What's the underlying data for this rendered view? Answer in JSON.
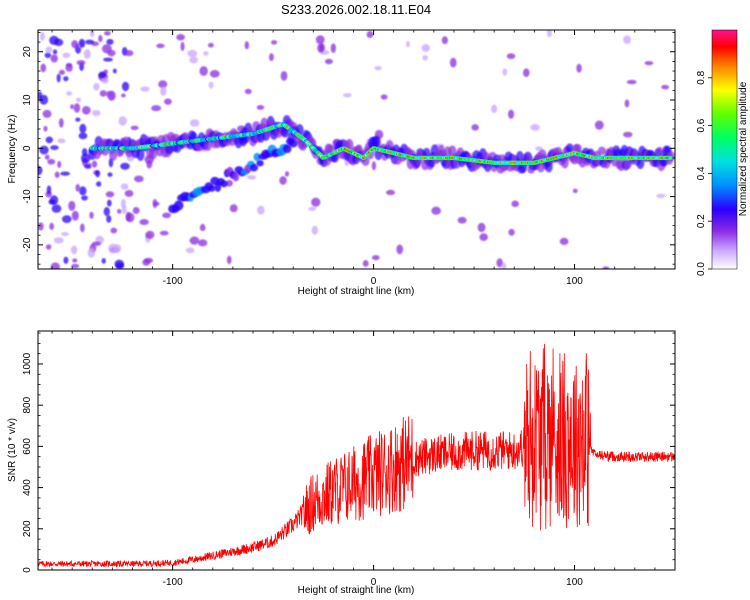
{
  "chart_data": [
    {
      "type": "heatmap",
      "title": "S233.2026.002.18.11.E04",
      "xlabel": "Height of straight line (km)",
      "ylabel": "Frequency (Hz)",
      "xlim": [
        -167,
        150
      ],
      "ylim": [
        -25,
        24.5
      ],
      "xticks": [
        -100,
        0,
        100
      ],
      "yticks": [
        -20,
        -10,
        0,
        10,
        20
      ],
      "colorbar": {
        "label": "Normalized spectral amplitude",
        "range": [
          0,
          1
        ],
        "ticks": [
          0.0,
          0.2,
          0.4,
          0.6,
          0.8
        ]
      },
      "ridge": {
        "description_points_x": [
          -140,
          -120,
          -100,
          -80,
          -60,
          -45,
          -35,
          -25,
          -15,
          -5,
          0,
          10,
          20,
          40,
          60,
          80,
          100,
          110,
          150
        ],
        "frequency_y": [
          0,
          0,
          1,
          2,
          3,
          5,
          2,
          -2,
          0,
          -2,
          0,
          -1,
          -2,
          -2,
          -3,
          -3,
          -1,
          -2,
          -2
        ]
      }
    },
    {
      "type": "line",
      "xlabel": "Height of straight line (km)",
      "ylabel": "SNR (10 * v/v)",
      "xlim": [
        -167,
        150
      ],
      "ylim": [
        0,
        1160
      ],
      "xticks": [
        -100,
        0,
        100
      ],
      "yticks": [
        0,
        200,
        400,
        600,
        800,
        1000
      ],
      "color": "#ff0000",
      "series": [
        {
          "name": "SNR",
          "x": [
            -167,
            -140,
            -120,
            -100,
            -90,
            -80,
            -70,
            -60,
            -50,
            -40,
            -30,
            -20,
            -10,
            0,
            10,
            20,
            30,
            40,
            50,
            60,
            70,
            75,
            80,
            85,
            90,
            95,
            100,
            105,
            110,
            120,
            130,
            140,
            150
          ],
          "y": [
            30,
            30,
            30,
            35,
            50,
            70,
            90,
            110,
            140,
            220,
            330,
            380,
            420,
            460,
            500,
            540,
            560,
            570,
            580,
            580,
            580,
            600,
            650,
            650,
            650,
            650,
            650,
            640,
            560,
            550,
            550,
            550,
            550
          ]
        }
      ]
    }
  ]
}
